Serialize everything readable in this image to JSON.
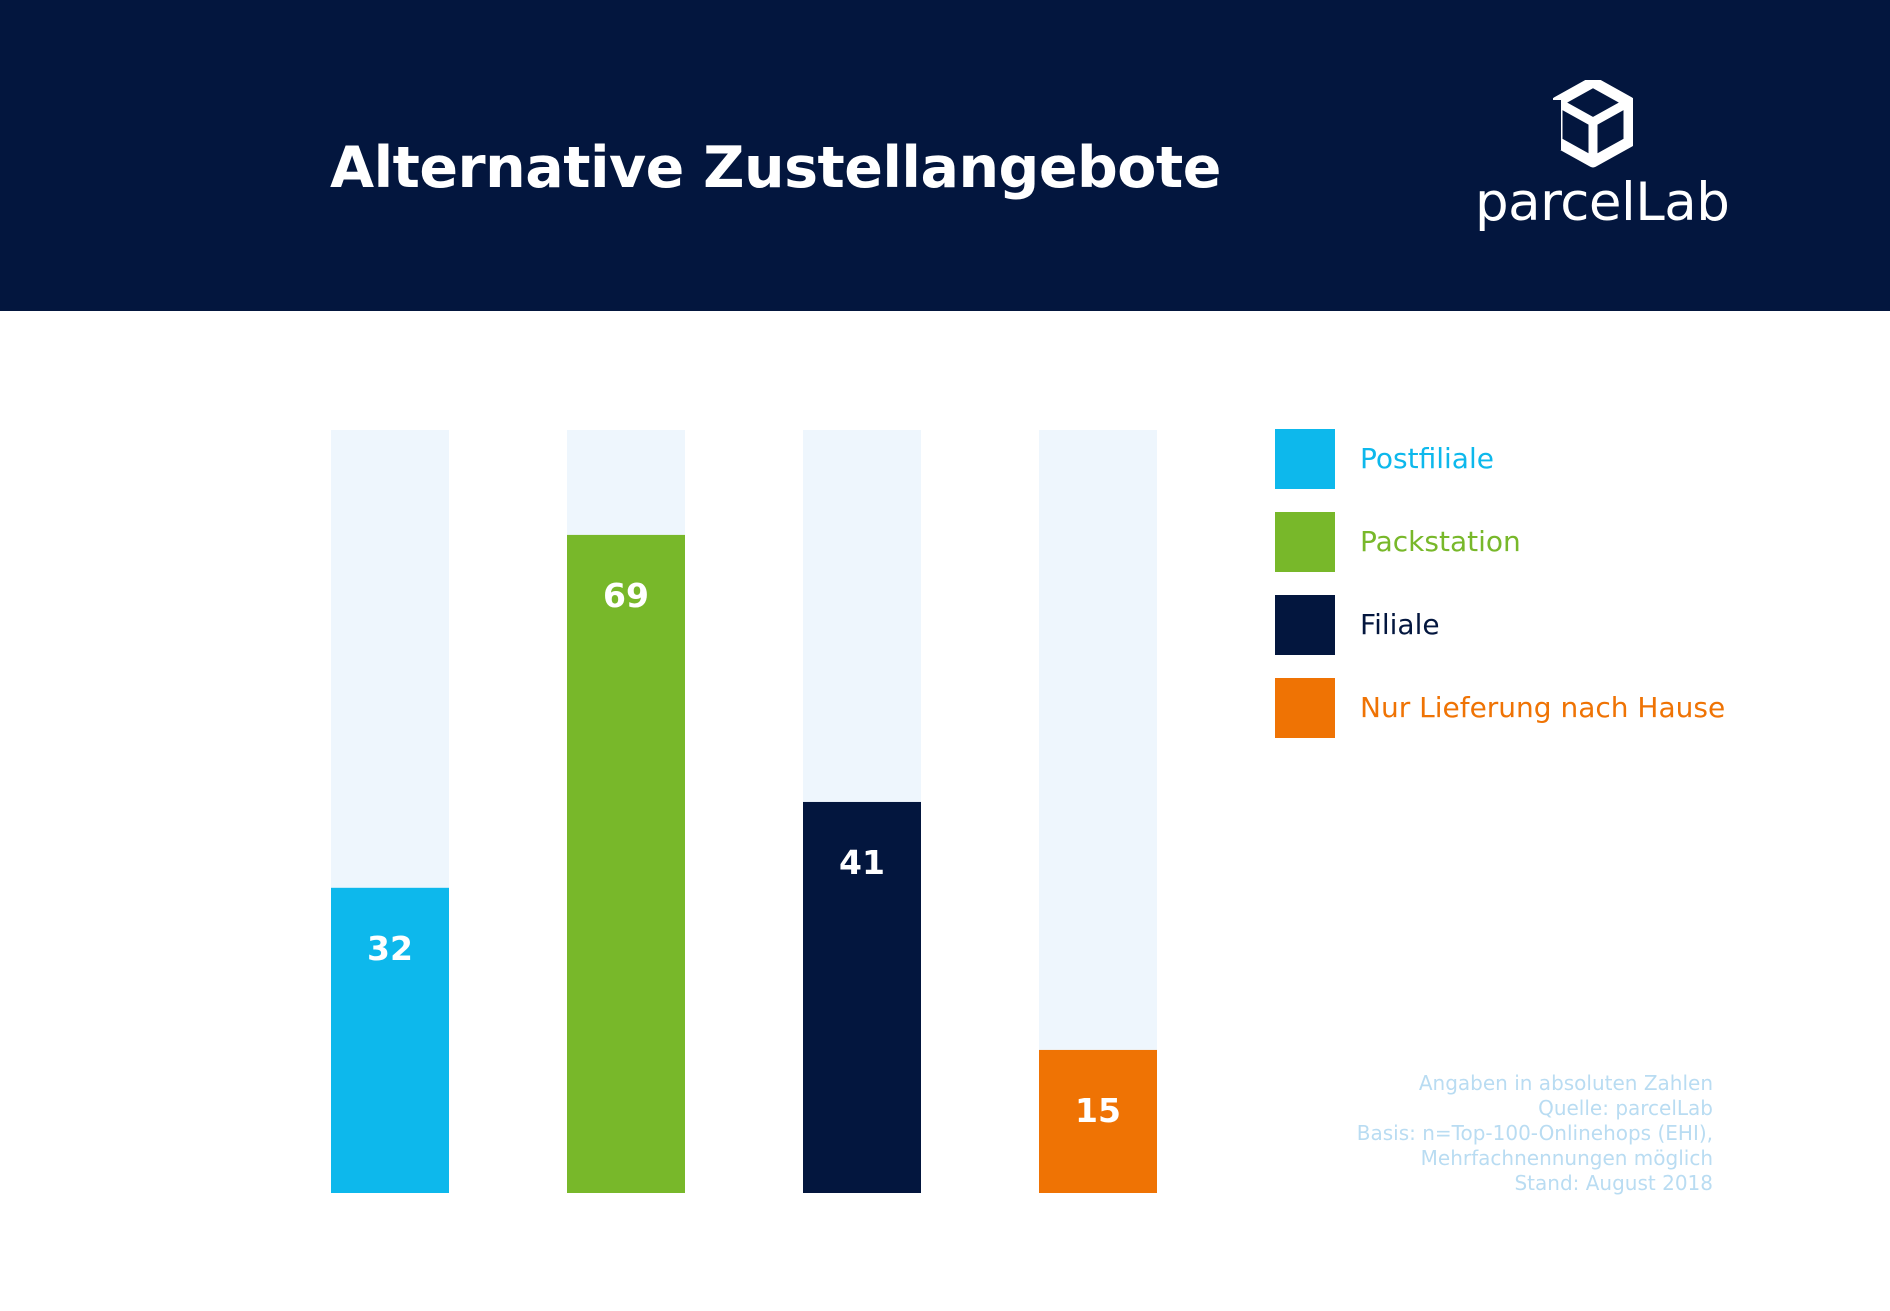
{
  "header": {
    "title": "Alternative Zustellangebote",
    "logo_text": "parcelLab"
  },
  "chart_data": {
    "type": "bar",
    "categories": [
      "Postfiliale",
      "Packstation",
      "Filiale",
      "Nur Lieferung nach Hause"
    ],
    "values": [
      32,
      69,
      41,
      15
    ],
    "ylim": [
      0,
      80
    ],
    "colors": [
      "#0db8ec",
      "#78b82a",
      "#03163e",
      "#ef7304"
    ],
    "track_color": "#eef6fd",
    "grid": false,
    "legend_position": "right",
    "legend": [
      {
        "label": "Postfiliale",
        "color": "#0db8ec",
        "text_color": "#0db8ec"
      },
      {
        "label": "Packstation",
        "color": "#78b82a",
        "text_color": "#78b82a"
      },
      {
        "label": "Filiale",
        "color": "#03163e",
        "text_color": "#03163e"
      },
      {
        "label": "Nur Lieferung nach Hause",
        "color": "#ef7304",
        "text_color": "#ef7304"
      }
    ]
  },
  "notes": {
    "line1": "Angaben in absoluten Zahlen",
    "line2": "Quelle: parcelLab",
    "line3": "Basis: n=Top-100-Onlinehops (EHI),",
    "line4": "Mehrfachnennungen möglich",
    "line5": "Stand: August 2018"
  }
}
